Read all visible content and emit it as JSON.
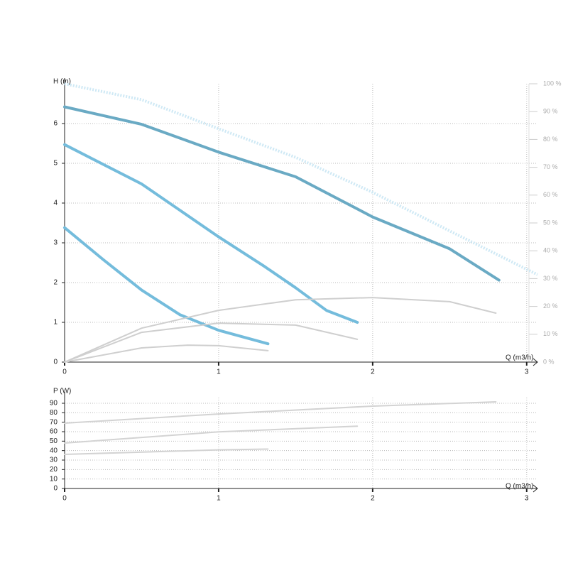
{
  "chart_data": [
    {
      "type": "line",
      "x_label": "Q (m3/h)",
      "y_label": "H (m)",
      "xlim": [
        0,
        3.07
      ],
      "xticks": [
        0,
        1,
        2,
        3
      ],
      "ylim": [
        0,
        7
      ],
      "yticks": [
        0,
        1,
        2,
        3,
        4,
        5,
        6
      ],
      "y2lim": [
        0,
        100
      ],
      "y2ticks": [
        {
          "value": 0,
          "label": "0 %"
        },
        {
          "value": 10,
          "label": "10 %"
        },
        {
          "value": 20,
          "label": "20 %"
        },
        {
          "value": 30,
          "label": "30 %"
        },
        {
          "value": 40,
          "label": "40 %"
        },
        {
          "value": 50,
          "label": "50 %"
        },
        {
          "value": 60,
          "label": "60 %"
        },
        {
          "value": 70,
          "label": "70 %"
        },
        {
          "value": 80,
          "label": "80 %"
        },
        {
          "value": 90,
          "label": "90 %"
        },
        {
          "value": 100,
          "label": "100 %"
        }
      ],
      "grid": true,
      "series": [
        {
          "color": "#cfe9f5",
          "dashed": true,
          "x": [
            0,
            0.5,
            1,
            1.5,
            2,
            2.5,
            3.07
          ],
          "values": [
            7.0,
            6.6,
            5.87,
            5.15,
            4.27,
            3.3,
            2.2
          ]
        },
        {
          "color": "#6aaac4",
          "x": [
            0,
            0.5,
            1,
            1.5,
            2,
            2.5,
            2.82
          ],
          "values": [
            6.42,
            5.98,
            5.28,
            4.66,
            3.65,
            2.85,
            2.06
          ]
        },
        {
          "color": "#74bcdc",
          "x": [
            0,
            0.5,
            1,
            1.3,
            1.5,
            1.7,
            1.9
          ],
          "values": [
            5.47,
            4.48,
            3.15,
            2.4,
            1.87,
            1.3,
            1.0
          ]
        },
        {
          "color": "#74bcdc",
          "x": [
            0,
            0.25,
            0.5,
            0.75,
            1,
            1.32
          ],
          "values": [
            3.38,
            2.58,
            1.81,
            1.19,
            0.8,
            0.46
          ]
        },
        {
          "color": "#cfcfcf",
          "axis": "y2",
          "x": [
            0,
            0.5,
            1,
            1.5,
            2,
            2.5,
            2.8
          ],
          "values": [
            0,
            12.2,
            18.6,
            22.4,
            23.2,
            21.7,
            17.6
          ]
        },
        {
          "color": "#cfcfcf",
          "axis": "y2",
          "x": [
            0,
            0.5,
            1,
            1.5,
            1.9
          ],
          "values": [
            0,
            10.7,
            14,
            13.3,
            8.2
          ]
        },
        {
          "color": "#cfcfcf",
          "axis": "y2",
          "x": [
            0,
            0.5,
            0.8,
            1,
            1.32
          ],
          "values": [
            0,
            5.1,
            6.1,
            5.9,
            4.1
          ]
        }
      ]
    },
    {
      "type": "line",
      "x_label": "Q (m3/h)",
      "y_label": "P (W)",
      "xlim": [
        0,
        3.07
      ],
      "xticks": [
        0,
        1,
        2,
        3
      ],
      "ylim": [
        0,
        96
      ],
      "yticks": [
        0,
        10,
        20,
        30,
        40,
        50,
        60,
        70,
        80,
        90
      ],
      "grid": true,
      "series": [
        {
          "color": "#d3d3d3",
          "x": [
            0,
            1,
            2,
            2.8
          ],
          "values": [
            69,
            78.7,
            87,
            91.5
          ]
        },
        {
          "color": "#d3d3d3",
          "x": [
            0,
            1,
            1.9
          ],
          "values": [
            48,
            59.8,
            65.8
          ]
        },
        {
          "color": "#d3d3d3",
          "x": [
            0,
            1,
            1.32
          ],
          "values": [
            36,
            40.8,
            41.6
          ]
        }
      ]
    }
  ]
}
